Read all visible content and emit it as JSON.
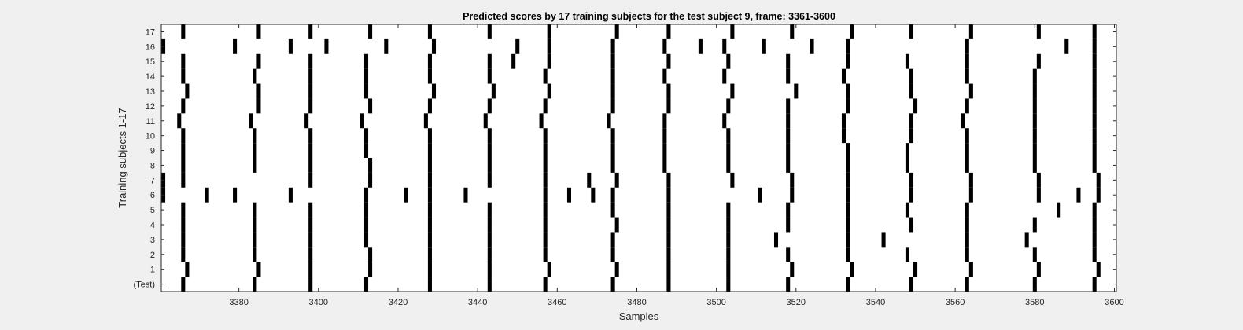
{
  "chart_data": {
    "type": "heatmap",
    "title": "Predicted scores by 17 training subjects for the test subject 9, frame: 3361-3600",
    "xlabel": "Samples",
    "ylabel": "Training subjects 1-17",
    "xlim": [
      3361,
      3600
    ],
    "xticks": [
      3380,
      3400,
      3420,
      3440,
      3460,
      3480,
      3500,
      3520,
      3540,
      3560,
      3580,
      3600
    ],
    "rows": [
      "(Test)",
      "1",
      "2",
      "3",
      "4",
      "5",
      "6",
      "7",
      "8",
      "9",
      "10",
      "11",
      "12",
      "13",
      "14",
      "15",
      "16",
      "17"
    ],
    "value_colors": {
      "0": "#ffffff",
      "1": "#000000"
    },
    "grid": false,
    "events": {
      "(Test)": [
        3366,
        3384,
        3398,
        3412,
        3428,
        3443,
        3457,
        3474,
        3488,
        3503,
        3518,
        3533,
        3549,
        3563,
        3580,
        3595
      ],
      "1": [
        3367,
        3385,
        3398,
        3413,
        3428,
        3443,
        3458,
        3475,
        3488,
        3503,
        3519,
        3534,
        3550,
        3564,
        3581,
        3596
      ],
      "2": [
        3366,
        3384,
        3398,
        3413,
        3428,
        3443,
        3457,
        3474,
        3488,
        3503,
        3518,
        3533,
        3548,
        3563,
        3580,
        3595
      ],
      "3": [
        3366,
        3384,
        3398,
        3412,
        3428,
        3443,
        3457,
        3474,
        3488,
        3503,
        3515,
        3533,
        3542,
        3563,
        3578,
        3595
      ],
      "4": [
        3366,
        3384,
        3398,
        3412,
        3428,
        3443,
        3457,
        3475,
        3488,
        3503,
        3518,
        3533,
        3549,
        3563,
        3580,
        3595
      ],
      "5": [
        3366,
        3384,
        3398,
        3412,
        3428,
        3443,
        3457,
        3474,
        3488,
        3503,
        3518,
        3533,
        3548,
        3563,
        3586,
        3595
      ],
      "6": [
        3361,
        3372,
        3379,
        3393,
        3412,
        3422,
        3428,
        3437,
        3457,
        3463,
        3469,
        3474,
        3488,
        3511,
        3519,
        3533,
        3549,
        3564,
        3581,
        3591,
        3596
      ],
      "7": [
        3361,
        3366,
        3398,
        3413,
        3428,
        3443,
        3457,
        3468,
        3475,
        3488,
        3504,
        3519,
        3533,
        3549,
        3564,
        3581,
        3596
      ],
      "8": [
        3366,
        3384,
        3398,
        3413,
        3428,
        3443,
        3457,
        3474,
        3487,
        3503,
        3518,
        3533,
        3548,
        3563,
        3580,
        3595
      ],
      "9": [
        3366,
        3384,
        3398,
        3412,
        3428,
        3443,
        3457,
        3474,
        3487,
        3503,
        3518,
        3533,
        3548,
        3563,
        3580,
        3595
      ],
      "10": [
        3366,
        3384,
        3398,
        3412,
        3428,
        3443,
        3457,
        3474,
        3487,
        3503,
        3518,
        3532,
        3549,
        3563,
        3580,
        3595
      ],
      "11": [
        3365,
        3383,
        3397,
        3411,
        3427,
        3442,
        3456,
        3473,
        3487,
        3502,
        3518,
        3532,
        3549,
        3562,
        3580,
        3595
      ],
      "12": [
        3366,
        3385,
        3398,
        3413,
        3428,
        3443,
        3457,
        3474,
        3488,
        3503,
        3518,
        3533,
        3550,
        3563,
        3580,
        3595
      ],
      "13": [
        3367,
        3385,
        3398,
        3412,
        3429,
        3444,
        3458,
        3474,
        3488,
        3504,
        3520,
        3533,
        3549,
        3564,
        3580,
        3595
      ],
      "14": [
        3366,
        3384,
        3398,
        3412,
        3428,
        3443,
        3457,
        3474,
        3487,
        3502,
        3518,
        3532,
        3549,
        3563,
        3580,
        3595
      ],
      "15": [
        3366,
        3385,
        3398,
        3412,
        3428,
        3443,
        3449,
        3458,
        3474,
        3488,
        3503,
        3518,
        3533,
        3548,
        3563,
        3581,
        3595
      ],
      "16": [
        3361,
        3379,
        3393,
        3402,
        3417,
        3429,
        3450,
        3458,
        3474,
        3487,
        3496,
        3502,
        3512,
        3524,
        3533,
        3563,
        3588,
        3595
      ],
      "17": [
        3366,
        3385,
        3398,
        3413,
        3428,
        3443,
        3458,
        3475,
        3488,
        3504,
        3519,
        3534,
        3549,
        3564,
        3581,
        3595
      ]
    }
  }
}
